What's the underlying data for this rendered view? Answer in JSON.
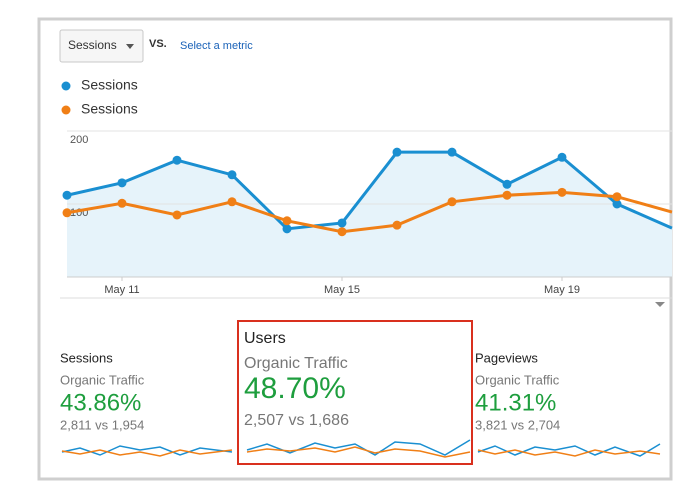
{
  "toolbar": {
    "metric": "Sessions",
    "vs": "VS.",
    "select": "Select a metric"
  },
  "chart_data": {
    "type": "line",
    "categories": [
      null,
      "May 11",
      null,
      null,
      null,
      "May 15",
      null,
      null,
      null,
      "May 19",
      null,
      null
    ],
    "series": [
      {
        "name": "Sessions",
        "color": "#1a8fd1",
        "values": [
          112,
          129,
          160,
          140,
          66,
          74,
          171,
          171,
          127,
          164,
          100,
          67
        ]
      },
      {
        "name": "Sessions",
        "color": "#f07f16",
        "values": [
          88,
          101,
          85,
          103,
          77,
          62,
          71,
          103,
          112,
          116,
          110,
          89
        ]
      }
    ],
    "ylim": [
      0,
      200
    ],
    "yticks": [
      100,
      200
    ],
    "grid": true
  },
  "cards": [
    {
      "title": "Sessions",
      "segment": "Organic Traffic",
      "change": "43.86%",
      "compare": "2,811 vs 1,954"
    },
    {
      "title": "Users",
      "segment": "Organic Traffic",
      "change": "48.70%",
      "compare": "2,507 vs 1,686"
    },
    {
      "title": "Pageviews",
      "segment": "Organic Traffic",
      "change": "41.31%",
      "compare": "3,821 vs 2,704"
    }
  ]
}
